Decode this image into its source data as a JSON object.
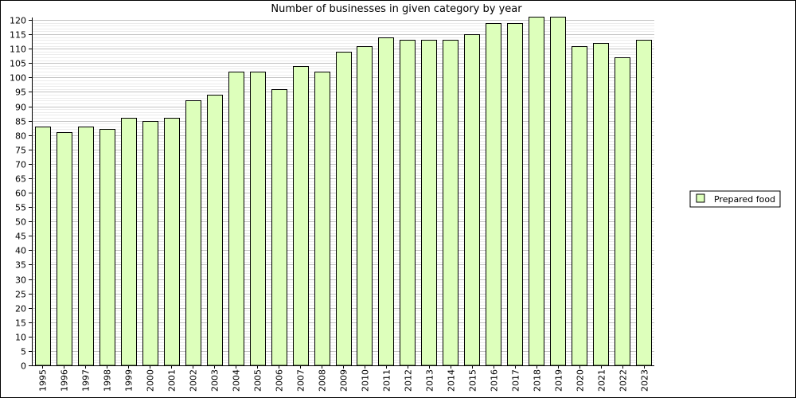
{
  "chart_data": {
    "type": "bar",
    "title": "Number of businesses in given category by year",
    "xlabel": "",
    "ylabel": "",
    "categories": [
      "1995",
      "1996",
      "1997",
      "1998",
      "1999",
      "2000",
      "2001",
      "2002",
      "2003",
      "2004",
      "2005",
      "2006",
      "2007",
      "2008",
      "2009",
      "2010",
      "2011",
      "2012",
      "2013",
      "2014",
      "2015",
      "2016",
      "2017",
      "2018",
      "2019",
      "2020",
      "2021",
      "2022",
      "2023"
    ],
    "series": [
      {
        "name": "Prepared food",
        "color": "#ddffbb",
        "values": [
          83,
          81,
          83,
          82,
          86,
          85,
          86,
          92,
          94,
          102,
          102,
          96,
          104,
          102,
          109,
          111,
          114,
          113,
          113,
          113,
          115,
          119,
          119,
          121,
          121,
          111,
          112,
          107,
          113
        ]
      }
    ],
    "ylim": [
      0,
      120
    ],
    "y_major_step": 5,
    "y_minor_step": 1,
    "grid": true,
    "legend_position": "right",
    "colors": {
      "bar_stroke": "#000000",
      "grid": "#bbbbbb",
      "axis": "#000000"
    }
  }
}
